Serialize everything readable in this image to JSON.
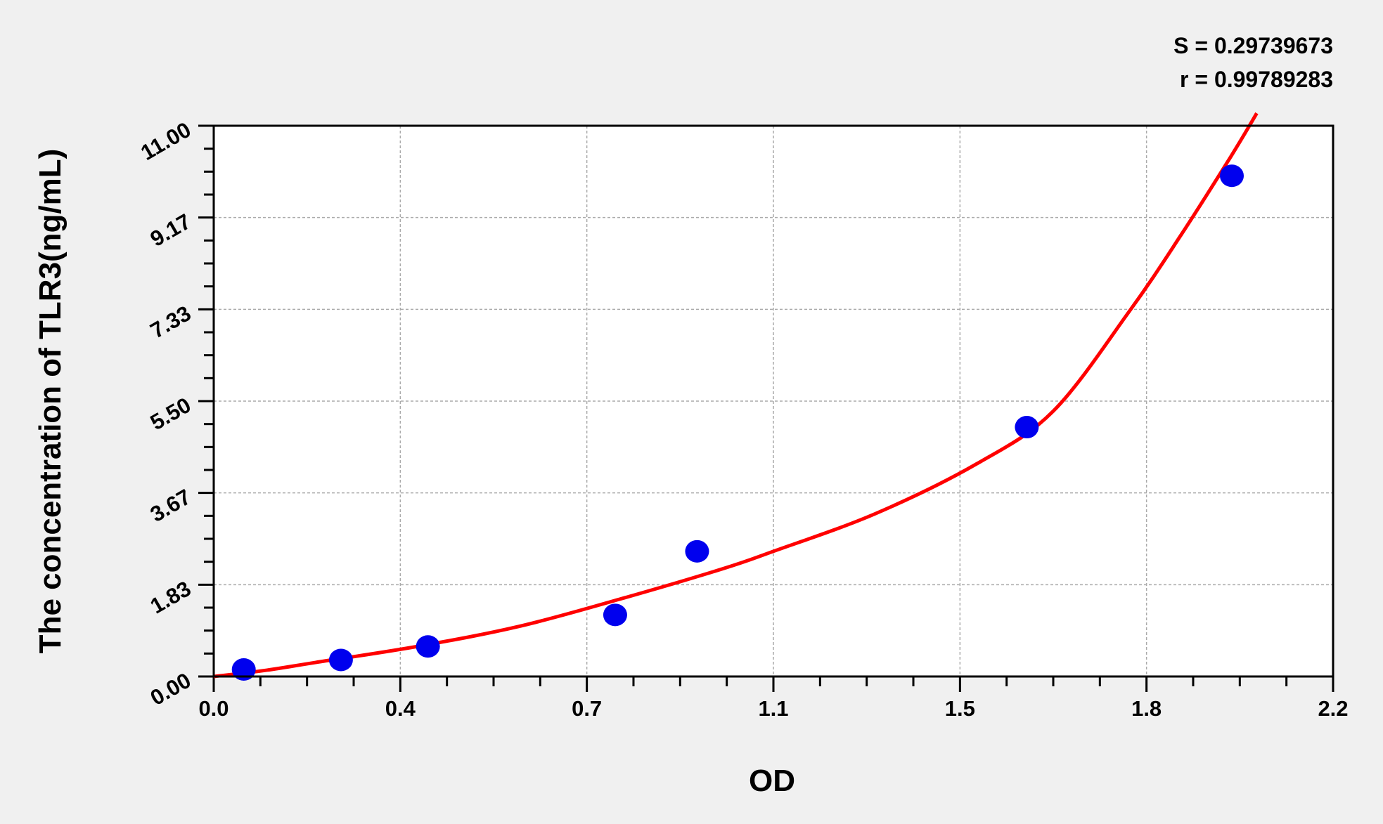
{
  "chart_data": {
    "type": "scatter",
    "title": "",
    "annotations": [
      "S = 0.29739673",
      "r = 0.99789283"
    ],
    "xlabel": "OD",
    "ylabel": "The concentration of TLR3(ng/mL)",
    "xlim": [
      0,
      2.2
    ],
    "ylim": [
      0,
      11
    ],
    "x_ticks": [
      0,
      0.3667,
      0.7333,
      1.1,
      1.4667,
      1.8333,
      2.2
    ],
    "x_tick_labels": [
      "0.0",
      "0.4",
      "0.7",
      "1.1",
      "1.5",
      "1.8",
      "2.2"
    ],
    "y_ticks": [
      0,
      1.8333,
      3.6667,
      5.5,
      7.3333,
      9.1667,
      11
    ],
    "y_tick_labels": [
      "0.00",
      "1.83",
      "3.67",
      "5.50",
      "7.33",
      "9.17",
      "11.00"
    ],
    "grid": true,
    "series": [
      {
        "kind": "points",
        "color": "#0000ee",
        "x": [
          0.059,
          0.25,
          0.421,
          0.789,
          0.95,
          1.598,
          2.001
        ],
        "y": [
          0.14,
          0.33,
          0.6,
          1.23,
          2.5,
          4.98,
          10.0
        ]
      },
      {
        "kind": "fitted-curve",
        "color": "#ff0000",
        "x": [
          0,
          0.1,
          0.2,
          0.4,
          0.6,
          0.8,
          1.0,
          1.1,
          1.3,
          1.5,
          1.65,
          1.8,
          1.9,
          2.0,
          2.05
        ],
        "y": [
          0,
          0.12,
          0.28,
          0.6,
          1.0,
          1.55,
          2.15,
          2.5,
          3.25,
          4.25,
          5.3,
          7.3,
          8.8,
          10.4,
          11.25
        ]
      }
    ]
  }
}
